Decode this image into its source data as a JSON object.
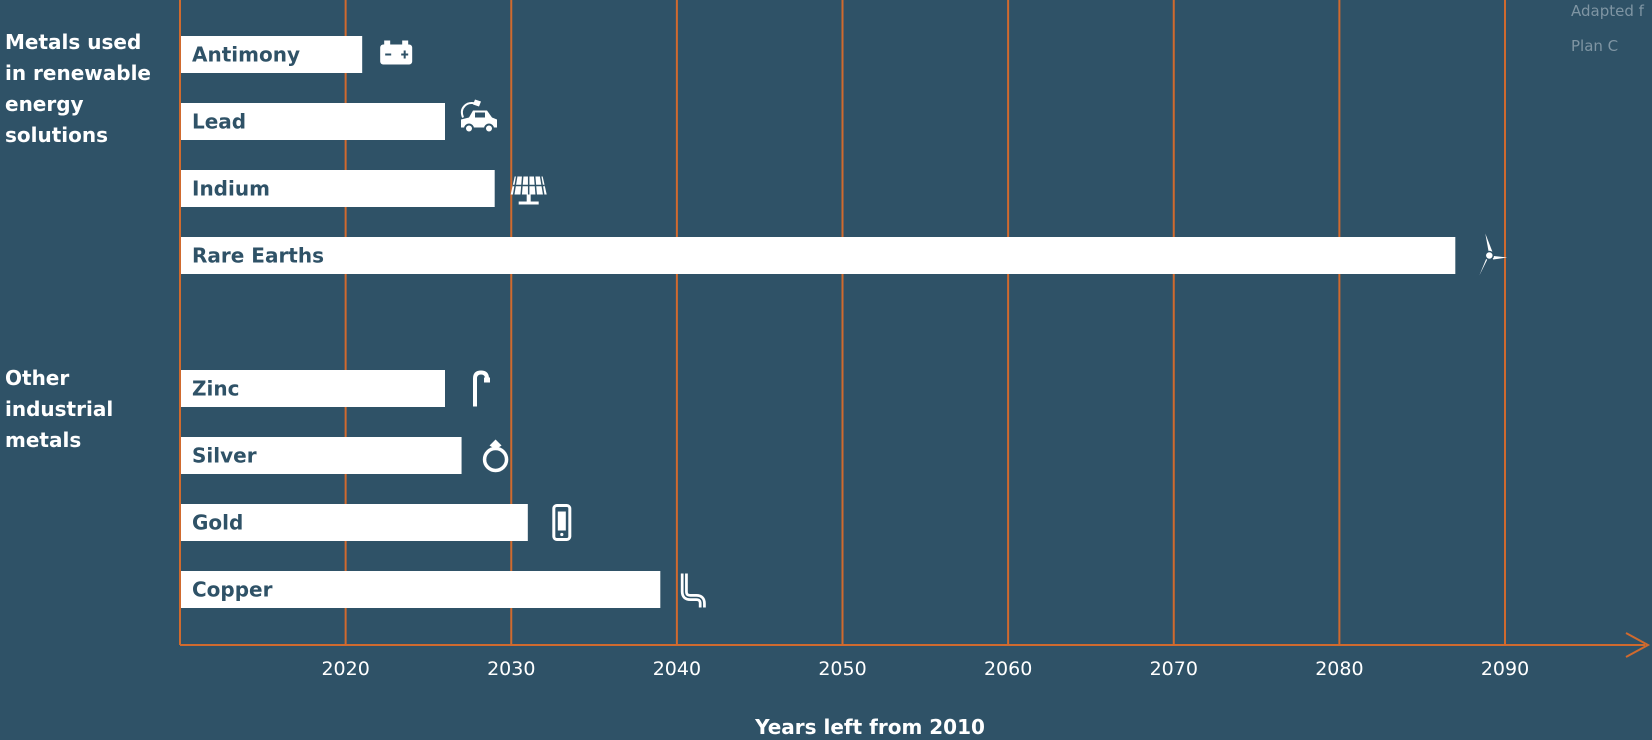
{
  "groups": [
    {
      "label_lines": [
        "Metals used",
        "in renewable",
        "energy",
        "solutions"
      ]
    },
    {
      "label_lines": [
        "Other",
        "industrial",
        "metals"
      ]
    }
  ],
  "credit": {
    "line1": "Adapted f",
    "line2": "Plan C"
  },
  "chart_data": {
    "type": "bar",
    "orientation": "horizontal",
    "categories": [
      "Antimony",
      "Lead",
      "Indium",
      "Rare Earths",
      "Zinc",
      "Silver",
      "Gold",
      "Copper"
    ],
    "values": [
      2021,
      2026,
      2029,
      2087,
      2026,
      2027,
      2031,
      2039
    ],
    "icons": [
      "battery-icon",
      "electric-car-icon",
      "solar-panel-icon",
      "wind-turbine-icon",
      "pipe-icon",
      "ring-icon",
      "phone-icon",
      "copper-pipe-icon"
    ],
    "xlabel": "Years left from 2010",
    "x_ticks": [
      2020,
      2030,
      2040,
      2050,
      2060,
      2070,
      2080,
      2090
    ],
    "xlim": [
      2010,
      2090
    ],
    "grid": true,
    "colors": {
      "bar": "#ffffff",
      "bar_label": "#2f5267",
      "grid": "#d06a2e",
      "axis": "#d06a2e",
      "background": "#2f5267",
      "tick_label": "#ffffff"
    }
  }
}
